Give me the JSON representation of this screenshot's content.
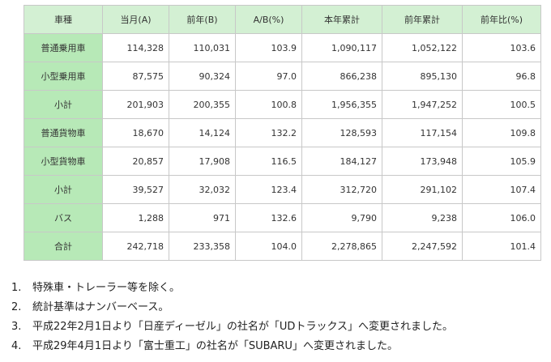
{
  "table": {
    "headers": [
      "車種",
      "当月(A)",
      "前年(B)",
      "A/B(%)",
      "本年累計",
      "前年累計",
      "前年比(%)"
    ],
    "rows": [
      {
        "label": "普通乗用車",
        "values": [
          "114,328",
          "110,031",
          "103.9",
          "1,090,117",
          "1,052,122",
          "103.6"
        ]
      },
      {
        "label": "小型乗用車",
        "values": [
          "87,575",
          "90,324",
          "97.0",
          "866,238",
          "895,130",
          "96.8"
        ]
      },
      {
        "label": "小計",
        "values": [
          "201,903",
          "200,355",
          "100.8",
          "1,956,355",
          "1,947,252",
          "100.5"
        ]
      },
      {
        "label": "普通貨物車",
        "values": [
          "18,670",
          "14,124",
          "132.2",
          "128,593",
          "117,154",
          "109.8"
        ]
      },
      {
        "label": "小型貨物車",
        "values": [
          "20,857",
          "17,908",
          "116.5",
          "184,127",
          "173,948",
          "105.9"
        ]
      },
      {
        "label": "小計",
        "values": [
          "39,527",
          "32,032",
          "123.4",
          "312,720",
          "291,102",
          "107.4"
        ]
      },
      {
        "label": "バス",
        "values": [
          "1,288",
          "971",
          "132.6",
          "9,790",
          "9,238",
          "106.0"
        ]
      },
      {
        "label": "合計",
        "values": [
          "242,718",
          "233,358",
          "104.0",
          "2,278,865",
          "2,247,592",
          "101.4"
        ]
      }
    ]
  },
  "notes": [
    {
      "num": "1.",
      "text": "特殊車・トレーラー等を除く。"
    },
    {
      "num": "2.",
      "text": "統計基準はナンバーベース。"
    },
    {
      "num": "3.",
      "text": "平成22年2月1日より「日産ディーゼル」の社名が「UDトラックス」へ変更されました。"
    },
    {
      "num": "4.",
      "text": "平成29年4月1日より「富士重工」の社名が「SUBARU」へ変更されました。"
    }
  ]
}
